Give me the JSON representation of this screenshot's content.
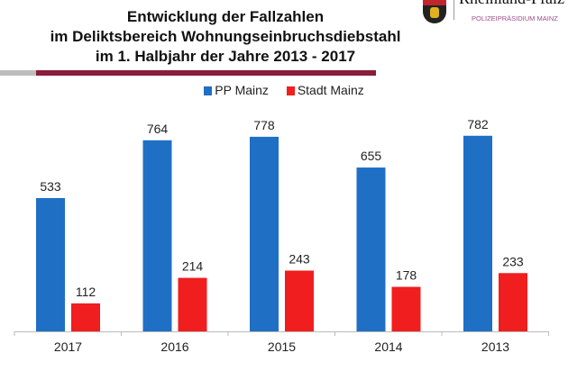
{
  "header": {
    "title_lines": [
      "Entwicklung der Fallzahlen",
      "im Deliktsbereich Wohnungseinbruchsdiebstahl",
      "im 1. Halbjahr der Jahre 2013 - 2017"
    ],
    "logo_name": "Rheinland-Pfalz",
    "logo_subtitle": "POLIZEIPRÄSIDIUM MAINZ",
    "accent_color": "#8a1c3c"
  },
  "chart_data": {
    "type": "bar",
    "title": "Entwicklung der Fallzahlen im Deliktsbereich Wohnungseinbruchsdiebstahl im 1. Halbjahr der Jahre 2013 - 2017",
    "categories": [
      "2017",
      "2016",
      "2015",
      "2014",
      "2013"
    ],
    "series": [
      {
        "name": "PP Mainz",
        "color": "#1f6fc5",
        "values": [
          533,
          764,
          778,
          655,
          782
        ]
      },
      {
        "name": "Stadt Mainz",
        "color": "#f01e1e",
        "values": [
          112,
          214,
          243,
          178,
          233
        ]
      }
    ],
    "xlabel": "",
    "ylabel": "",
    "ylim": [
      0,
      900
    ],
    "grid": false,
    "legend": "top-center",
    "data_labels": true
  }
}
